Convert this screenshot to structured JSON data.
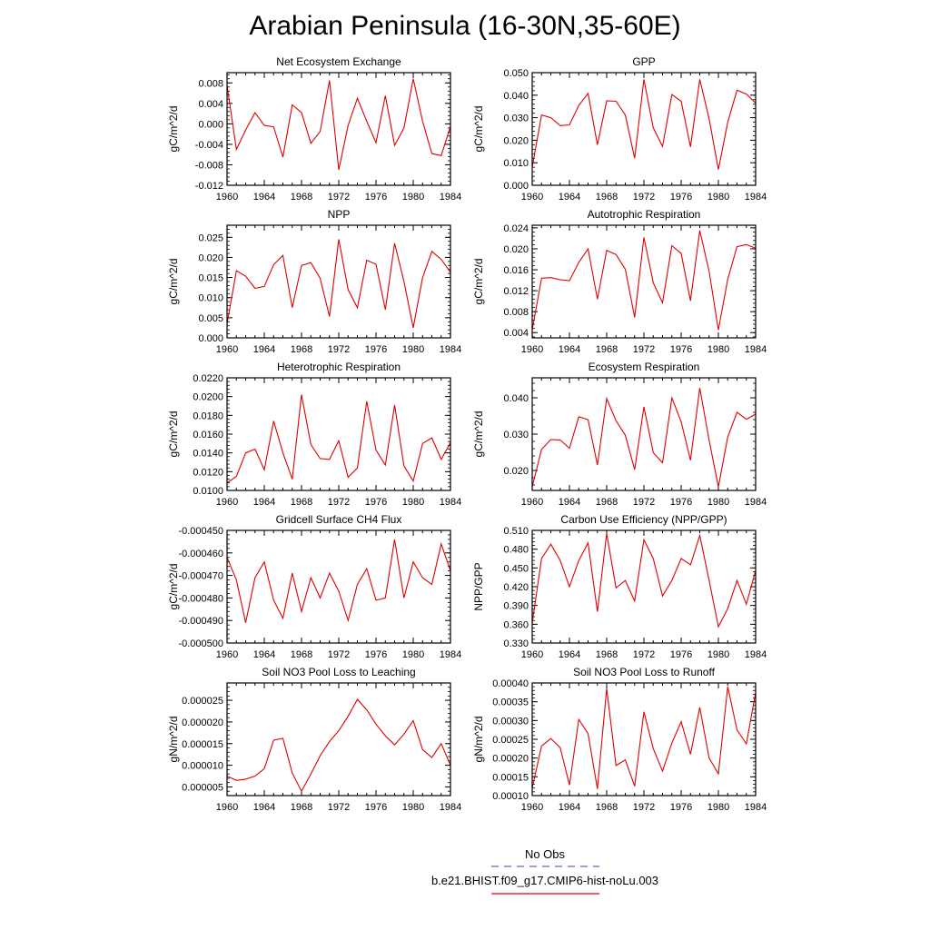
{
  "title": "Arabian Peninsula (16-30N,35-60E)",
  "legend": {
    "obs_label": "No Obs",
    "obs_color": "#6464c8",
    "model_label": "b.e21.BHIST.f09_g17.CMIP6-hist-noLu.003",
    "model_color": "#e00000"
  },
  "chart_data": [
    {
      "type": "line",
      "title": "Net Ecosystem Exchange",
      "ylabel": "gC/m^2/d",
      "x": [
        1960,
        1961,
        1962,
        1963,
        1964,
        1965,
        1966,
        1967,
        1968,
        1969,
        1970,
        1971,
        1972,
        1973,
        1974,
        1975,
        1976,
        1977,
        1978,
        1979,
        1980,
        1981,
        1982,
        1983,
        1984
      ],
      "series": [
        {
          "values": [
            0.0075,
            -0.005,
            -0.0012,
            0.0022,
            -0.0003,
            -0.0006,
            -0.0065,
            0.0037,
            0.0022,
            -0.0038,
            -0.0015,
            0.0085,
            -0.009,
            -0.0003,
            0.005,
            0.0005,
            -0.0037,
            0.0055,
            -0.0042,
            -0.0008,
            0.0088,
            0.0005,
            -0.0058,
            -0.0062,
            -0.0005
          ],
          "color": "#e00000"
        }
      ],
      "xlim": [
        1960,
        1984
      ],
      "xticks": [
        1960,
        1964,
        1968,
        1972,
        1976,
        1980,
        1984
      ],
      "ylim": [
        -0.012,
        0.01
      ],
      "yticks": [
        -0.012,
        -0.008,
        -0.004,
        0.0,
        0.004,
        0.008
      ],
      "ytick_labels": [
        "-0.012",
        "-0.008",
        "-0.004",
        "0.000",
        "0.004",
        "0.008"
      ]
    },
    {
      "type": "line",
      "title": "GPP",
      "ylabel": "gC/m^2/d",
      "x": [
        1960,
        1961,
        1962,
        1963,
        1964,
        1965,
        1966,
        1967,
        1968,
        1969,
        1970,
        1971,
        1972,
        1973,
        1974,
        1975,
        1976,
        1977,
        1978,
        1979,
        1980,
        1981,
        1982,
        1983,
        1984
      ],
      "series": [
        {
          "values": [
            0.008,
            0.0312,
            0.03,
            0.0265,
            0.0268,
            0.0355,
            0.0408,
            0.018,
            0.0375,
            0.0373,
            0.0312,
            0.012,
            0.047,
            0.0255,
            0.0172,
            0.0403,
            0.0373,
            0.017,
            0.047,
            0.0295,
            0.007,
            0.028,
            0.0422,
            0.0405,
            0.0365
          ],
          "color": "#e00000"
        }
      ],
      "xlim": [
        1960,
        1984
      ],
      "xticks": [
        1960,
        1964,
        1968,
        1972,
        1976,
        1980,
        1984
      ],
      "ylim": [
        0.0,
        0.05
      ],
      "yticks": [
        0.0,
        0.01,
        0.02,
        0.03,
        0.04,
        0.05
      ],
      "ytick_labels": [
        "0.000",
        "0.010",
        "0.020",
        "0.030",
        "0.040",
        "0.050"
      ]
    },
    {
      "type": "line",
      "title": "NPP",
      "ylabel": "gC/m^2/d",
      "x": [
        1960,
        1961,
        1962,
        1963,
        1964,
        1965,
        1966,
        1967,
        1968,
        1969,
        1970,
        1971,
        1972,
        1973,
        1974,
        1975,
        1976,
        1977,
        1978,
        1979,
        1980,
        1981,
        1982,
        1983,
        1984
      ],
      "series": [
        {
          "values": [
            0.0035,
            0.0167,
            0.0153,
            0.0123,
            0.0128,
            0.0182,
            0.0205,
            0.0075,
            0.018,
            0.0187,
            0.0148,
            0.0053,
            0.0245,
            0.012,
            0.0075,
            0.0193,
            0.0183,
            0.007,
            0.0235,
            0.014,
            0.0025,
            0.015,
            0.0215,
            0.0195,
            0.0163
          ],
          "color": "#e00000"
        }
      ],
      "xlim": [
        1960,
        1984
      ],
      "xticks": [
        1960,
        1964,
        1968,
        1972,
        1976,
        1980,
        1984
      ],
      "ylim": [
        0.0,
        0.028
      ],
      "yticks": [
        0.0,
        0.005,
        0.01,
        0.015,
        0.02,
        0.025
      ],
      "ytick_labels": [
        "0.000",
        "0.005",
        "0.010",
        "0.015",
        "0.020",
        "0.025"
      ]
    },
    {
      "type": "line",
      "title": "Autotrophic Respiration",
      "ylabel": "gC/m^2/d",
      "x": [
        1960,
        1961,
        1962,
        1963,
        1964,
        1965,
        1966,
        1967,
        1968,
        1969,
        1970,
        1971,
        1972,
        1973,
        1974,
        1975,
        1976,
        1977,
        1978,
        1979,
        1980,
        1981,
        1982,
        1983,
        1984
      ],
      "series": [
        {
          "values": [
            0.0045,
            0.0144,
            0.0145,
            0.0141,
            0.0139,
            0.0174,
            0.02,
            0.0104,
            0.0197,
            0.0189,
            0.0161,
            0.0069,
            0.0222,
            0.0135,
            0.0097,
            0.0206,
            0.0191,
            0.0101,
            0.0235,
            0.0157,
            0.0045,
            0.0142,
            0.0204,
            0.0208,
            0.0201
          ],
          "color": "#e00000"
        }
      ],
      "xlim": [
        1960,
        1984
      ],
      "xticks": [
        1960,
        1964,
        1968,
        1972,
        1976,
        1980,
        1984
      ],
      "ylim": [
        0.003,
        0.0245
      ],
      "yticks": [
        0.004,
        0.008,
        0.012,
        0.016,
        0.02,
        0.024
      ],
      "ytick_labels": [
        "0.004",
        "0.008",
        "0.012",
        "0.016",
        "0.020",
        "0.024"
      ]
    },
    {
      "type": "line",
      "title": "Heterotrophic Respiration",
      "ylabel": "gC/m^2/d",
      "x": [
        1960,
        1961,
        1962,
        1963,
        1964,
        1965,
        1966,
        1967,
        1968,
        1969,
        1970,
        1971,
        1972,
        1973,
        1974,
        1975,
        1976,
        1977,
        1978,
        1979,
        1980,
        1981,
        1982,
        1983,
        1984
      ],
      "series": [
        {
          "values": [
            0.0108,
            0.0115,
            0.014,
            0.0144,
            0.0122,
            0.0174,
            0.014,
            0.0112,
            0.0202,
            0.0149,
            0.0134,
            0.0133,
            0.0153,
            0.0114,
            0.0124,
            0.0195,
            0.0143,
            0.0127,
            0.0191,
            0.0126,
            0.011,
            0.015,
            0.0156,
            0.0133,
            0.0151
          ],
          "color": "#e00000"
        }
      ],
      "xlim": [
        1960,
        1984
      ],
      "xticks": [
        1960,
        1964,
        1968,
        1972,
        1976,
        1980,
        1984
      ],
      "ylim": [
        0.01,
        0.022
      ],
      "yticks": [
        0.01,
        0.012,
        0.014,
        0.016,
        0.018,
        0.02,
        0.022
      ],
      "ytick_labels": [
        "0.0100",
        "0.0120",
        "0.0140",
        "0.0160",
        "0.0180",
        "0.0200",
        "0.0220"
      ]
    },
    {
      "type": "line",
      "title": "Ecosystem Respiration",
      "ylabel": "gC/m^2/d",
      "x": [
        1960,
        1961,
        1962,
        1963,
        1964,
        1965,
        1966,
        1967,
        1968,
        1969,
        1970,
        1971,
        1972,
        1973,
        1974,
        1975,
        1976,
        1977,
        1978,
        1979,
        1980,
        1981,
        1982,
        1983,
        1984
      ],
      "series": [
        {
          "values": [
            0.0155,
            0.0258,
            0.0285,
            0.0284,
            0.0261,
            0.0348,
            0.034,
            0.0215,
            0.0398,
            0.0337,
            0.0297,
            0.0202,
            0.0375,
            0.0249,
            0.0221,
            0.04,
            0.0334,
            0.0228,
            0.0427,
            0.0283,
            0.0155,
            0.0292,
            0.036,
            0.0341,
            0.0355
          ],
          "color": "#e00000"
        }
      ],
      "xlim": [
        1960,
        1984
      ],
      "xticks": [
        1960,
        1964,
        1968,
        1972,
        1976,
        1980,
        1984
      ],
      "ylim": [
        0.0145,
        0.0455
      ],
      "yticks": [
        0.02,
        0.03,
        0.04
      ],
      "ytick_labels": [
        "0.020",
        "0.030",
        "0.040"
      ]
    },
    {
      "type": "line",
      "title": "Gridcell Surface CH4 Flux",
      "ylabel": "gC/m^2/d",
      "x": [
        1960,
        1961,
        1962,
        1963,
        1964,
        1965,
        1966,
        1967,
        1968,
        1969,
        1970,
        1971,
        1972,
        1973,
        1974,
        1975,
        1976,
        1977,
        1978,
        1979,
        1980,
        1981,
        1982,
        1983,
        1984
      ],
      "series": [
        {
          "values": [
            -0.000462,
            -0.000472,
            -0.000491,
            -0.000471,
            -0.000464,
            -0.000481,
            -0.000489,
            -0.000469,
            -0.000486,
            -0.000471,
            -0.00048,
            -0.000469,
            -0.000477,
            -0.00049,
            -0.000474,
            -0.000467,
            -0.000481,
            -0.00048,
            -0.000454,
            -0.00048,
            -0.000464,
            -0.000471,
            -0.000474,
            -0.000456,
            -0.000468
          ],
          "color": "#e00000"
        }
      ],
      "xlim": [
        1960,
        1984
      ],
      "xticks": [
        1960,
        1964,
        1968,
        1972,
        1976,
        1980,
        1984
      ],
      "ylim": [
        -0.0005,
        -0.00045
      ],
      "yticks": [
        -0.0005,
        -0.00049,
        -0.00048,
        -0.00047,
        -0.00046,
        -0.00045
      ],
      "ytick_labels": [
        "-0.000500",
        "-0.000490",
        "-0.000480",
        "-0.000470",
        "-0.000460",
        "-0.000450"
      ]
    },
    {
      "type": "line",
      "title": "Carbon Use Efficiency (NPP/GPP)",
      "ylabel": "NPP/GPP",
      "x": [
        1960,
        1961,
        1962,
        1963,
        1964,
        1965,
        1966,
        1967,
        1968,
        1969,
        1970,
        1971,
        1972,
        1973,
        1974,
        1975,
        1976,
        1977,
        1978,
        1979,
        1980,
        1981,
        1982,
        1983,
        1984
      ],
      "series": [
        {
          "values": [
            0.362,
            0.465,
            0.488,
            0.462,
            0.42,
            0.462,
            0.49,
            0.38,
            0.505,
            0.418,
            0.43,
            0.397,
            0.495,
            0.465,
            0.405,
            0.43,
            0.465,
            0.455,
            0.502,
            0.43,
            0.356,
            0.385,
            0.43,
            0.392,
            0.446
          ],
          "color": "#e00000"
        }
      ],
      "xlim": [
        1960,
        1984
      ],
      "xticks": [
        1960,
        1964,
        1968,
        1972,
        1976,
        1980,
        1984
      ],
      "ylim": [
        0.33,
        0.51
      ],
      "yticks": [
        0.33,
        0.36,
        0.39,
        0.42,
        0.45,
        0.48,
        0.51
      ],
      "ytick_labels": [
        "0.330",
        "0.360",
        "0.390",
        "0.420",
        "0.450",
        "0.480",
        "0.510"
      ]
    },
    {
      "type": "line",
      "title": "Soil NO3 Pool Loss to Leaching",
      "ylabel": "gN/m^2/d",
      "x": [
        1960,
        1961,
        1962,
        1963,
        1964,
        1965,
        1966,
        1967,
        1968,
        1969,
        1970,
        1971,
        1972,
        1973,
        1974,
        1975,
        1976,
        1977,
        1978,
        1979,
        1980,
        1981,
        1982,
        1983,
        1984
      ],
      "series": [
        {
          "values": [
            7.5e-06,
            6.5e-06,
            6.8e-06,
            7.5e-06,
            9.2e-06,
            1.58e-05,
            1.62e-05,
            8.2e-06,
            4e-06,
            8e-06,
            1.22e-05,
            1.55e-05,
            1.8e-05,
            2.13e-05,
            2.52e-05,
            2.28e-05,
            1.95e-05,
            1.68e-05,
            1.47e-05,
            1.72e-05,
            2.03e-05,
            1.36e-05,
            1.18e-05,
            1.5e-05,
            1e-05
          ],
          "color": "#e00000"
        }
      ],
      "xlim": [
        1960,
        1984
      ],
      "xticks": [
        1960,
        1964,
        1968,
        1972,
        1976,
        1980,
        1984
      ],
      "ylim": [
        3e-06,
        2.9e-05
      ],
      "yticks": [
        5e-06,
        1e-05,
        1.5e-05,
        2e-05,
        2.5e-05
      ],
      "ytick_labels": [
        "0.000005",
        "0.000010",
        "0.000015",
        "0.000020",
        "0.000025"
      ]
    },
    {
      "type": "line",
      "title": "Soil NO3 Pool Loss to Runoff",
      "ylabel": "gN/m^2/d",
      "x": [
        1960,
        1961,
        1962,
        1963,
        1964,
        1965,
        1966,
        1967,
        1968,
        1969,
        1970,
        1971,
        1972,
        1973,
        1974,
        1975,
        1976,
        1977,
        1978,
        1979,
        1980,
        1981,
        1982,
        1983,
        1984
      ],
      "series": [
        {
          "values": [
            0.00012,
            0.000232,
            0.000252,
            0.000228,
            0.000128,
            0.000303,
            0.000265,
            0.000118,
            0.000385,
            0.00018,
            0.000195,
            0.000125,
            0.000323,
            0.000225,
            0.000165,
            0.00024,
            0.000297,
            0.00021,
            0.000335,
            0.0002,
            0.000158,
            0.00039,
            0.000275,
            0.000238,
            0.000375
          ],
          "color": "#e00000"
        }
      ],
      "xlim": [
        1960,
        1984
      ],
      "xticks": [
        1960,
        1964,
        1968,
        1972,
        1976,
        1980,
        1984
      ],
      "ylim": [
        0.0001,
        0.0004
      ],
      "yticks": [
        0.0001,
        0.00015,
        0.0002,
        0.00025,
        0.0003,
        0.00035,
        0.0004
      ],
      "ytick_labels": [
        "0.00010",
        "0.00015",
        "0.00020",
        "0.00025",
        "0.00030",
        "0.00035",
        "0.00040"
      ]
    }
  ]
}
